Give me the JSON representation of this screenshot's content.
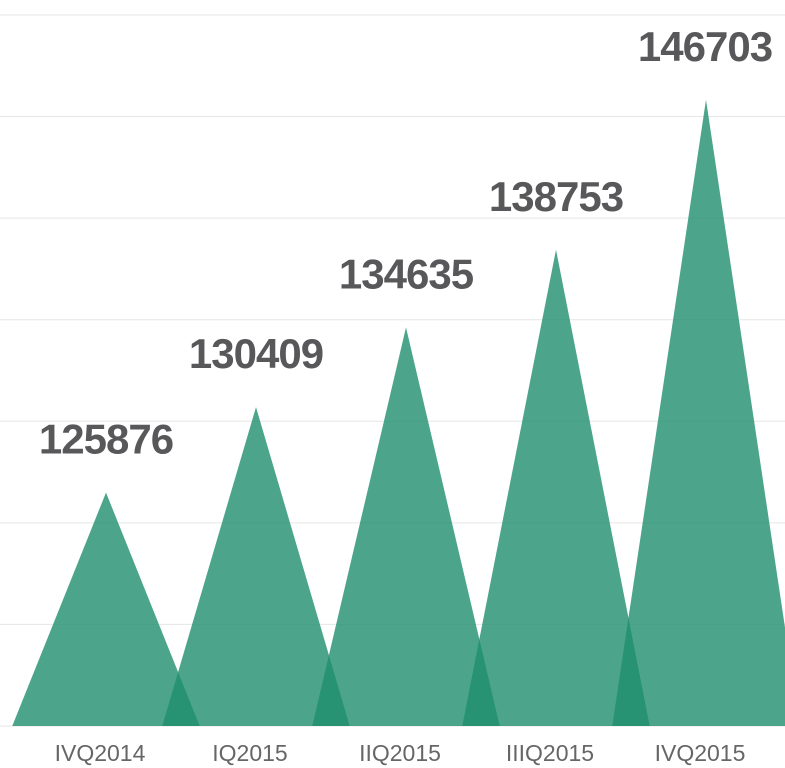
{
  "chart_data": {
    "type": "triangle",
    "categories": [
      "IVQ2014",
      "IQ2015",
      "IIQ2015",
      "IIIQ2015",
      "IVQ2015"
    ],
    "values": [
      125876,
      130409,
      134635,
      138753,
      146703
    ],
    "color": "#1f8f6d",
    "ylim": [
      113500,
      151200
    ],
    "yticks": [
      113500,
      118890,
      124270,
      129660,
      135040,
      140430,
      145820,
      151200
    ],
    "grid": true
  }
}
